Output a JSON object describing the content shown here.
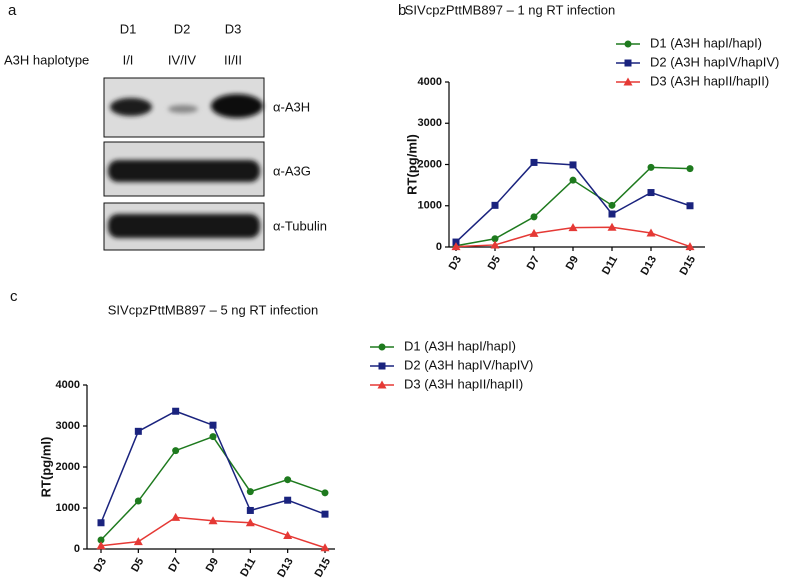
{
  "panels": {
    "a": {
      "label": "a",
      "donors": [
        "D1",
        "D2",
        "D3"
      ],
      "row_label": "A3H haplotype",
      "haplotypes": [
        "I/I",
        "IV/IV",
        "II/II"
      ],
      "blots": [
        "α-A3H",
        "α-A3G",
        "α-Tubulin"
      ]
    }
  },
  "chart_data": [
    {
      "type": "line",
      "panel_label": "b",
      "title": "SIVcpzPttMB897 – 1 ng RT infection",
      "ylabel": "RT(pg/ml)",
      "categories": [
        "D3",
        "D5",
        "D7",
        "D9",
        "D11",
        "D13",
        "D15"
      ],
      "ylim": [
        0,
        4000
      ],
      "yticks": [
        0,
        1000,
        2000,
        3000,
        4000
      ],
      "series": [
        {
          "name": "D1 (A3H hapI/hapI)",
          "color": "#1e7a1e",
          "marker": "circle",
          "values": [
            30,
            200,
            730,
            1620,
            1010,
            1930,
            1900
          ]
        },
        {
          "name": "D2 (A3H hapIV/hapIV)",
          "color": "#1a237e",
          "marker": "square",
          "values": [
            120,
            1010,
            2050,
            1990,
            800,
            1320,
            1000
          ]
        },
        {
          "name": "D3 (A3H hapII/hapII)",
          "color": "#e53935",
          "marker": "triangle",
          "values": [
            10,
            50,
            330,
            470,
            480,
            340,
            10
          ]
        }
      ]
    },
    {
      "type": "line",
      "panel_label": "c",
      "title": "SIVcpzPttMB897 – 5 ng RT infection",
      "ylabel": "RT(pg/ml)",
      "categories": [
        "D3",
        "D5",
        "D7",
        "D9",
        "D11",
        "D13",
        "D15"
      ],
      "ylim": [
        0,
        4000
      ],
      "yticks": [
        0,
        1000,
        2000,
        3000,
        4000
      ],
      "series": [
        {
          "name": "D1 (A3H hapI/hapI)",
          "color": "#1e7a1e",
          "marker": "circle",
          "values": [
            220,
            1170,
            2400,
            2740,
            1400,
            1690,
            1370
          ]
        },
        {
          "name": "D2 (A3H hapIV/hapIV)",
          "color": "#1a237e",
          "marker": "square",
          "values": [
            640,
            2870,
            3360,
            3020,
            940,
            1190,
            850
          ]
        },
        {
          "name": "D3 (A3H hapII/hapII)",
          "color": "#e53935",
          "marker": "triangle",
          "values": [
            80,
            180,
            770,
            690,
            640,
            330,
            30
          ]
        }
      ]
    }
  ]
}
